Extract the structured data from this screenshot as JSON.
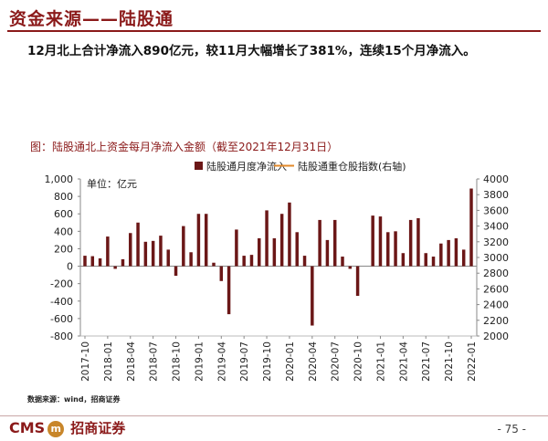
{
  "header": {
    "title": "资金来源——陆股通",
    "subtitle": "12月北上合计净流入890亿元，较11月大幅增长了381%，连续15个月净流入。"
  },
  "chart_title": "图：陆股通北上资金每月净流入金额（截至2021年12月31日）",
  "source": "数据来源：wind，招商证券",
  "footer": {
    "logo_text": "CMS",
    "logo_mark": "m",
    "logo_zh": "招商证券",
    "page": "- 75 -"
  },
  "chart_data": {
    "type": "bar",
    "unit_label": "单位：亿元",
    "ylim": [
      -800,
      1000
    ],
    "yticks": [
      -800,
      -600,
      -400,
      -200,
      0,
      200,
      400,
      600,
      800,
      1000
    ],
    "y2lim": [
      2000,
      4000
    ],
    "y2ticks": [
      2000,
      2200,
      2400,
      2600,
      2800,
      3000,
      3200,
      3400,
      3600,
      3800,
      4000
    ],
    "xticks": [
      "2017-10",
      "2018-01",
      "2018-04",
      "2018-07",
      "2018-10",
      "2019-01",
      "2019-04",
      "2019-07",
      "2019-10",
      "2020-01",
      "2020-04",
      "2020-07",
      "2020-10",
      "2021-01",
      "2021-04",
      "2021-07",
      "2021-10",
      "2022-01"
    ],
    "grid": false,
    "legend_position": "top",
    "colors": {
      "bar": "#6b1717",
      "line": "#e38a2a"
    },
    "series": [
      {
        "name": "陆股通月度净流入",
        "values": [
          120,
          115,
          90,
          340,
          -30,
          80,
          380,
          500,
          280,
          290,
          350,
          190,
          -110,
          460,
          160,
          600,
          600,
          40,
          -170,
          -550,
          420,
          120,
          130,
          320,
          640,
          320,
          600,
          730,
          390,
          120,
          -680,
          530,
          300,
          530,
          110,
          -30,
          -340,
          0,
          580,
          570,
          390,
          400,
          150,
          530,
          550,
          150,
          110,
          260,
          300,
          320,
          190,
          890
        ]
      },
      {
        "name": "陆股通重仓股指数(右轴)",
        "values": []
      }
    ]
  }
}
